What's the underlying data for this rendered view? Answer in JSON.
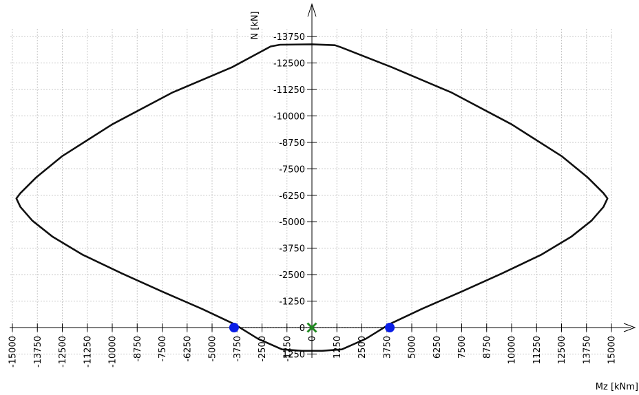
{
  "chart_data": {
    "type": "line",
    "title": "",
    "xlabel": "Mz [kNm]",
    "ylabel": "N [kN]",
    "xlim": [
      -15000,
      15000
    ],
    "ylim": [
      -14300,
      1500
    ],
    "y_inverted": true,
    "grid": true,
    "x_ticks": [
      "-15000",
      "-13750",
      "-12500",
      "-11250",
      "-10000",
      "-8750",
      "-7500",
      "-6250",
      "-5000",
      "-3750",
      "-2500",
      "-1250",
      "0",
      "1250",
      "2500",
      "3750",
      "5000",
      "6250",
      "7500",
      "8750",
      "10000",
      "11250",
      "12500",
      "13750",
      "15000"
    ],
    "y_ticks": [
      "-13750",
      "-12500",
      "-11250",
      "-10000",
      "-8750",
      "-7500",
      "-6250",
      "-5000",
      "-3750",
      "-2500",
      "-1250",
      "0",
      "1250"
    ],
    "series": [
      {
        "closed": true,
        "points": [
          [
            -2070,
            -13280
          ],
          [
            -1600,
            -13360
          ],
          [
            0,
            -13380
          ],
          [
            1150,
            -13340
          ],
          [
            1450,
            -13240
          ],
          [
            4000,
            -12300
          ],
          [
            7000,
            -11100
          ],
          [
            10000,
            -9600
          ],
          [
            12500,
            -8100
          ],
          [
            13800,
            -7100
          ],
          [
            14600,
            -6350
          ],
          [
            14800,
            -6100
          ],
          [
            14600,
            -5700
          ],
          [
            14000,
            -5050
          ],
          [
            13000,
            -4300
          ],
          [
            11500,
            -3450
          ],
          [
            9500,
            -2550
          ],
          [
            7500,
            -1700
          ],
          [
            5500,
            -880
          ],
          [
            3900,
            -170
          ],
          [
            2700,
            530
          ],
          [
            1500,
            1030
          ],
          [
            500,
            1100
          ],
          [
            -500,
            1100
          ],
          [
            -1500,
            1030
          ],
          [
            -2700,
            530
          ],
          [
            -3900,
            -170
          ],
          [
            -5500,
            -880
          ],
          [
            -7500,
            -1700
          ],
          [
            -9500,
            -2550
          ],
          [
            -11500,
            -3450
          ],
          [
            -13000,
            -4300
          ],
          [
            -14000,
            -5050
          ],
          [
            -14600,
            -5700
          ],
          [
            -14800,
            -6100
          ],
          [
            -14600,
            -6350
          ],
          [
            -13800,
            -7100
          ],
          [
            -12500,
            -8100
          ],
          [
            -10000,
            -9600
          ],
          [
            -7000,
            -11100
          ],
          [
            -4000,
            -12300
          ]
        ]
      }
    ],
    "markers": [
      {
        "x": -3900,
        "y": 0,
        "shape": "circle",
        "color": "#0a1ee6"
      },
      {
        "x": 3900,
        "y": 0,
        "shape": "circle",
        "color": "#0a1ee6"
      },
      {
        "x": 0,
        "y": 0,
        "shape": "cross",
        "color": "#1f8a1f"
      }
    ],
    "colors": {
      "curve": "#111111",
      "axis": "#000000",
      "grid": "#c8c8c8",
      "dotted_line": "#000000"
    }
  }
}
